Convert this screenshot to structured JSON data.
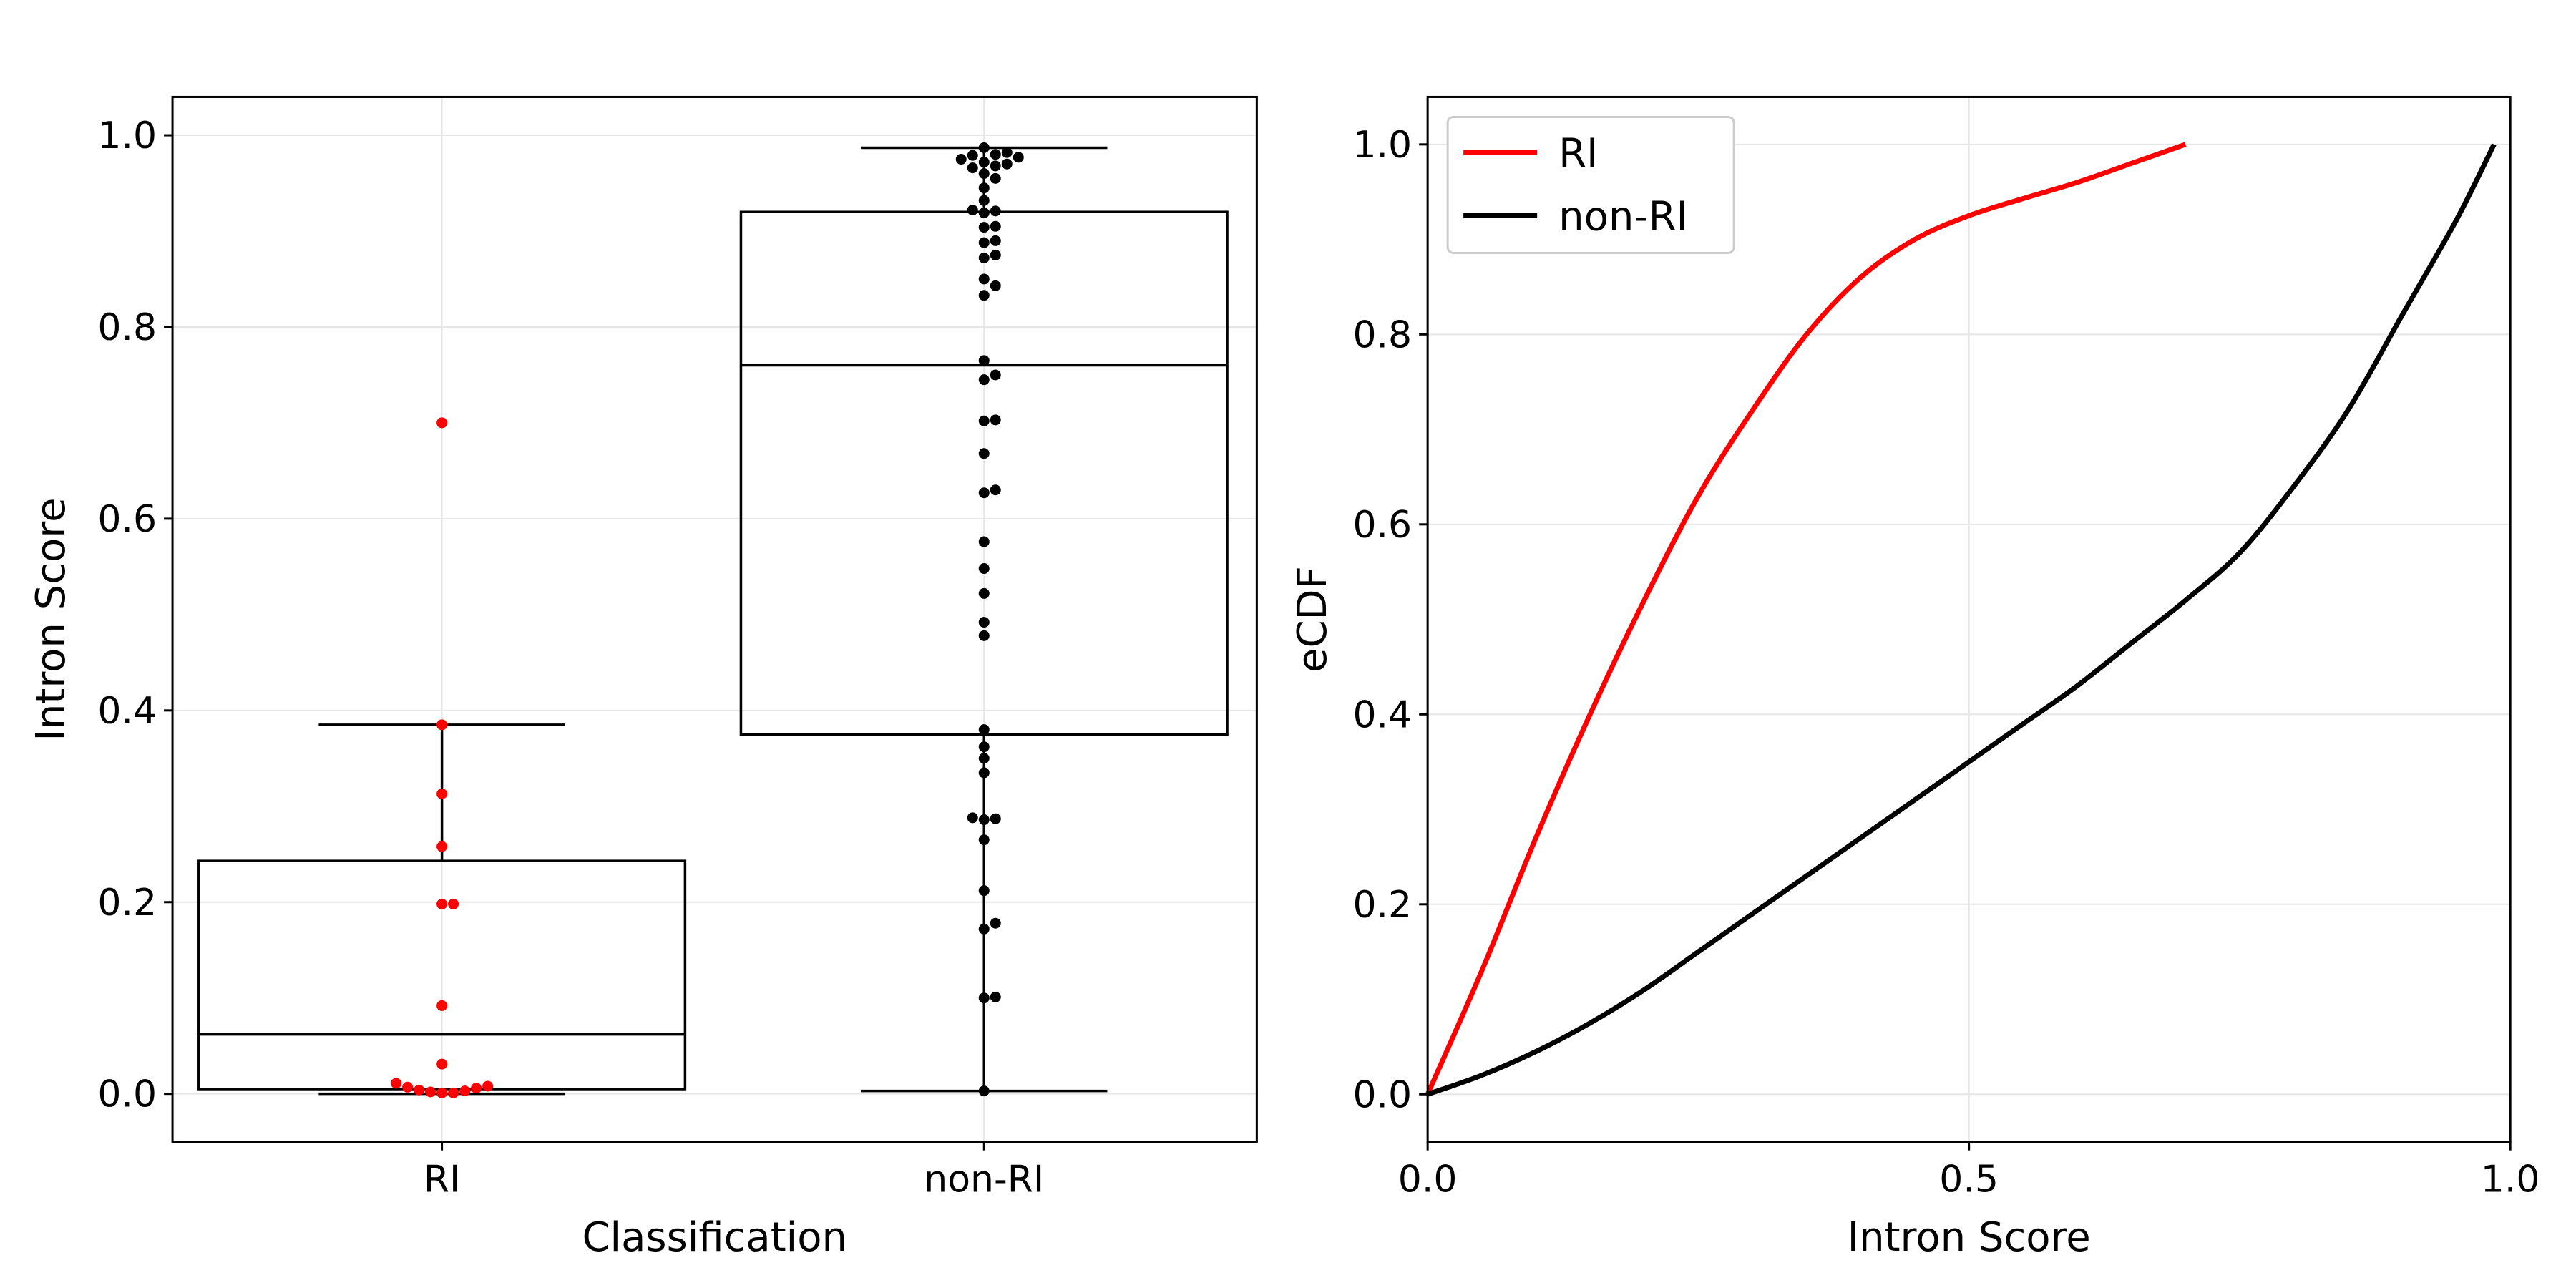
{
  "chart_data": [
    {
      "type": "box",
      "xlabel": "Classification",
      "ylabel": "Intron Score",
      "categories": [
        "RI",
        "non-RI"
      ],
      "ylim": [
        -0.05,
        1.04
      ],
      "yticks": [
        "0.0",
        "0.2",
        "0.4",
        "0.6",
        "0.8",
        "1.0"
      ],
      "grid": true,
      "boxes": [
        {
          "name": "RI",
          "color": "#ff0000",
          "q1": 0.005,
          "median": 0.062,
          "q3": 0.243,
          "whisker_low": 0.0,
          "whisker_high": 0.385,
          "points": [
            0.7,
            0.385,
            0.313,
            0.258,
            0.198,
            0.198,
            0.092,
            0.031,
            0.011,
            0.008,
            0.007,
            0.006,
            0.004,
            0.003,
            0.002,
            0.001,
            0.001
          ]
        },
        {
          "name": "non-RI",
          "color": "#000000",
          "q1": 0.375,
          "median": 0.76,
          "q3": 0.92,
          "whisker_low": 0.003,
          "whisker_high": 0.987,
          "points": [
            0.987,
            0.982,
            0.98,
            0.979,
            0.977,
            0.975,
            0.972,
            0.97,
            0.968,
            0.966,
            0.96,
            0.955,
            0.945,
            0.932,
            0.922,
            0.921,
            0.919,
            0.905,
            0.904,
            0.89,
            0.888,
            0.875,
            0.872,
            0.85,
            0.843,
            0.833,
            0.765,
            0.75,
            0.745,
            0.703,
            0.702,
            0.668,
            0.63,
            0.627,
            0.576,
            0.548,
            0.522,
            0.492,
            0.478,
            0.38,
            0.362,
            0.35,
            0.335,
            0.288,
            0.287,
            0.286,
            0.265,
            0.212,
            0.178,
            0.172,
            0.101,
            0.1,
            0.003
          ]
        }
      ]
    },
    {
      "type": "line",
      "xlabel": "Intron Score",
      "ylabel": "eCDF",
      "xlim": [
        0.0,
        1.0
      ],
      "ylim": [
        -0.05,
        1.05
      ],
      "xticks": [
        "0.0",
        "0.5",
        "1.0"
      ],
      "yticks": [
        "0.0",
        "0.2",
        "0.4",
        "0.6",
        "0.8",
        "1.0"
      ],
      "grid": true,
      "legend_position": "top-left",
      "series": [
        {
          "name": "RI",
          "color": "#ff0000",
          "x": [
            0.0,
            0.05,
            0.1,
            0.15,
            0.2,
            0.25,
            0.3,
            0.35,
            0.4,
            0.45,
            0.5,
            0.55,
            0.6,
            0.65,
            0.7
          ],
          "y": [
            0.0,
            0.13,
            0.27,
            0.4,
            0.52,
            0.63,
            0.72,
            0.8,
            0.86,
            0.9,
            0.925,
            0.943,
            0.96,
            0.98,
            1.0
          ]
        },
        {
          "name": "non-RI",
          "color": "#000000",
          "x": [
            0.0,
            0.05,
            0.1,
            0.15,
            0.2,
            0.25,
            0.3,
            0.35,
            0.4,
            0.45,
            0.5,
            0.55,
            0.6,
            0.65,
            0.7,
            0.75,
            0.8,
            0.85,
            0.9,
            0.95,
            0.985
          ],
          "y": [
            0.0,
            0.02,
            0.045,
            0.075,
            0.11,
            0.15,
            0.19,
            0.23,
            0.27,
            0.31,
            0.35,
            0.39,
            0.43,
            0.475,
            0.52,
            0.57,
            0.64,
            0.72,
            0.82,
            0.92,
            1.0
          ]
        }
      ]
    }
  ]
}
